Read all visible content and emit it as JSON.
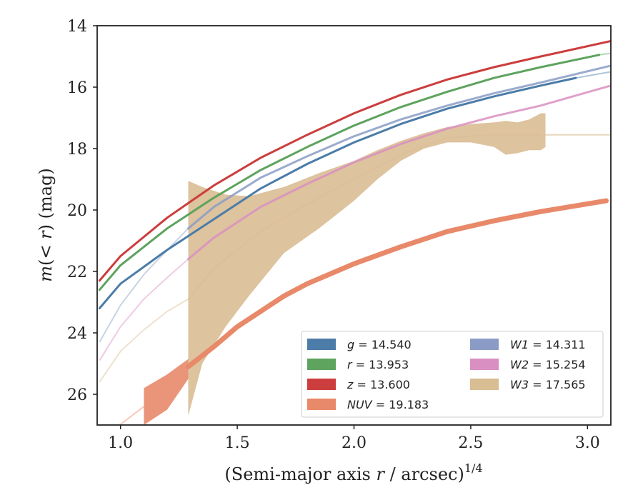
{
  "chart_data": {
    "type": "line",
    "xlabel": "(Semi-major axis r / arcsec)^{1/4}",
    "ylabel": "m(<r) (mag)",
    "xlim": [
      0.9,
      3.1
    ],
    "ylim": [
      27.0,
      14.0
    ],
    "y_inverted": true,
    "xticks": [
      "1.0",
      "1.5",
      "2.0",
      "2.5",
      "3.0"
    ],
    "yticks": [
      "14",
      "16",
      "18",
      "20",
      "22",
      "24",
      "26"
    ],
    "grid": false,
    "legend": {
      "placement": "lower-right",
      "columns": 2
    },
    "series": [
      {
        "key": "g",
        "label": "g = 14.540",
        "color": "#4c7ca8",
        "x": [
          0.91,
          1.0,
          1.2,
          1.4,
          1.6,
          1.8,
          2.0,
          2.2,
          2.4,
          2.6,
          2.8,
          2.95
        ],
        "y": [
          23.2,
          22.4,
          21.3,
          20.3,
          19.3,
          18.5,
          17.8,
          17.2,
          16.7,
          16.3,
          15.95,
          15.7
        ],
        "faint_x": [
          2.95,
          3.1
        ],
        "faint_y": [
          15.7,
          15.5
        ]
      },
      {
        "key": "r",
        "label": "r = 13.953",
        "color": "#5ea35e",
        "x": [
          0.91,
          1.0,
          1.2,
          1.4,
          1.6,
          1.8,
          2.0,
          2.2,
          2.4,
          2.6,
          2.8,
          3.05
        ],
        "y": [
          22.6,
          21.8,
          20.6,
          19.6,
          18.7,
          17.95,
          17.25,
          16.65,
          16.15,
          15.7,
          15.35,
          14.95
        ],
        "faint_x": [
          3.05,
          3.1
        ],
        "faint_y": [
          14.95,
          14.9
        ]
      },
      {
        "key": "z",
        "label": "z = 13.600",
        "color": "#cc3d3d",
        "x": [
          0.91,
          1.0,
          1.2,
          1.4,
          1.6,
          1.8,
          2.0,
          2.2,
          2.4,
          2.6,
          2.8,
          3.1
        ],
        "y": [
          22.3,
          21.5,
          20.25,
          19.2,
          18.3,
          17.55,
          16.85,
          16.25,
          15.75,
          15.35,
          15.0,
          14.5
        ]
      },
      {
        "key": "NUV",
        "label": "NUV = 19.183",
        "color": "#e8896a",
        "x": [
          1.29,
          1.4,
          1.5,
          1.6,
          1.7,
          1.8,
          2.0,
          2.2,
          2.4,
          2.6,
          2.8,
          3.08
        ],
        "y": [
          25.1,
          24.45,
          23.8,
          23.3,
          22.8,
          22.4,
          21.75,
          21.2,
          20.7,
          20.35,
          20.05,
          19.7
        ],
        "band_x": [
          1.1,
          1.2,
          1.29
        ],
        "band_lower": [
          25.8,
          25.35,
          24.85
        ],
        "band_upper": [
          27.0,
          26.5,
          25.5
        ],
        "faint_x": [
          0.91,
          1.1
        ],
        "faint_y": [
          27.5,
          26.4
        ]
      },
      {
        "key": "W1",
        "label": "W1 = 14.311",
        "color": "#8a9cc6",
        "x": [
          1.29,
          1.4,
          1.6,
          1.8,
          2.0,
          2.2,
          2.4,
          2.6,
          2.8,
          3.1
        ],
        "y": [
          20.6,
          19.9,
          18.95,
          18.25,
          17.6,
          17.05,
          16.6,
          16.2,
          15.85,
          15.3
        ],
        "faint_x": [
          0.91,
          1.0,
          1.1,
          1.2,
          1.29
        ],
        "faint_y": [
          24.3,
          23.1,
          22.1,
          21.3,
          20.6
        ]
      },
      {
        "key": "W2",
        "label": "W2 = 15.254",
        "color": "#d98fc1",
        "x": [
          1.29,
          1.4,
          1.6,
          1.8,
          2.0,
          2.2,
          2.4,
          2.6,
          2.8,
          3.1
        ],
        "y": [
          21.6,
          20.9,
          19.9,
          19.15,
          18.45,
          17.85,
          17.35,
          16.95,
          16.6,
          15.95
        ],
        "faint_x": [
          0.91,
          1.0,
          1.1,
          1.2,
          1.29
        ],
        "faint_y": [
          24.9,
          23.8,
          22.9,
          22.2,
          21.6
        ]
      },
      {
        "key": "W3",
        "label": "W3 = 17.565",
        "color": "#d9bd93",
        "x": [
          1.29,
          1.4,
          1.6,
          1.8,
          2.0,
          2.2,
          2.4,
          2.6,
          2.8
        ],
        "y": [
          22.9,
          21.9,
          20.7,
          19.8,
          19.0,
          18.2,
          17.65,
          17.55,
          17.55
        ],
        "band_x": [
          1.29,
          1.35,
          1.45,
          1.55,
          1.7,
          1.85,
          2.0,
          2.1,
          2.2,
          2.3,
          2.4,
          2.5,
          2.6,
          2.65,
          2.7,
          2.75,
          2.8,
          2.82
        ],
        "band_upper": [
          19.05,
          19.25,
          19.5,
          19.55,
          19.25,
          18.8,
          18.4,
          18.05,
          17.75,
          17.5,
          17.3,
          17.2,
          17.15,
          17.1,
          17.15,
          17.05,
          16.85,
          16.85
        ],
        "band_lower": [
          26.7,
          25.0,
          23.8,
          22.8,
          21.4,
          20.6,
          19.7,
          19.0,
          18.4,
          18.0,
          17.8,
          17.8,
          17.95,
          18.2,
          18.15,
          18.05,
          18.05,
          17.95
        ],
        "faint_x": [
          0.91,
          1.0,
          1.1,
          1.2,
          1.29
        ],
        "faint_y": [
          25.6,
          24.6,
          23.9,
          23.3,
          22.9
        ],
        "tail_x": [
          2.82,
          3.1
        ],
        "tail_y": [
          17.55,
          17.55
        ]
      }
    ]
  }
}
